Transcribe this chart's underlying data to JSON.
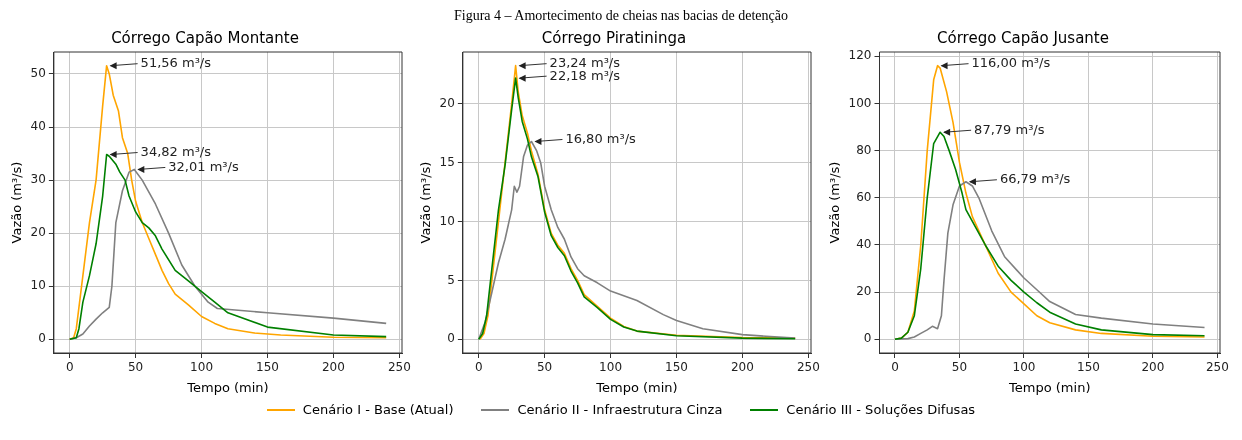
{
  "chart_data": [
    {
      "type": "line",
      "title": "Córrego Capão Montante",
      "xlabel": "Tempo (min)",
      "ylabel": "Vazão (m³/s)",
      "xlim": [
        -12,
        252
      ],
      "ylim": [
        -2.58,
        54.14
      ],
      "xticks": [
        0,
        50,
        100,
        150,
        200,
        250
      ],
      "yticks": [
        0,
        10,
        20,
        30,
        40,
        50
      ],
      "grid": true,
      "legend": "bottom",
      "line_style": "solid",
      "marker": "none",
      "annotations": [
        "Figura 4 – Amortecimento de cheias nas bacias de detenção",
        {
          "text": "51,56 m³/s",
          "x": 28,
          "y": 51.56
        },
        {
          "text": "34,82 m³/s",
          "x": 28,
          "y": 34.82
        },
        {
          "text": "32,01 m³/s",
          "x": 49,
          "y": 32.01
        }
      ],
      "series": [
        {
          "name": "Cenário I - Base (Atual)",
          "color": "#ffa500",
          "x": [
            0,
            3,
            5,
            10,
            15,
            20,
            25,
            28,
            30,
            33,
            37,
            40,
            44,
            47,
            50,
            55,
            60,
            65,
            70,
            75,
            80,
            90,
            100,
            110,
            120,
            140,
            160,
            200,
            240
          ],
          "values": [
            0,
            0.3,
            2,
            12,
            22,
            30,
            44,
            51.56,
            50,
            46,
            43,
            38,
            35,
            30,
            26,
            22,
            19,
            16,
            13,
            10.5,
            8.5,
            6.5,
            4.3,
            3,
            2,
            1.2,
            0.8,
            0.4,
            0.3
          ]
        },
        {
          "name": "Cenário II - Infraestrutura Cinza",
          "color": "#808080",
          "x": [
            0,
            5,
            10,
            15,
            20,
            25,
            30,
            32,
            35,
            40,
            45,
            49,
            55,
            65,
            75,
            85,
            95,
            105,
            112,
            150,
            200,
            240
          ],
          "values": [
            0,
            0.3,
            1,
            2.5,
            3.8,
            5,
            6,
            10,
            22,
            28,
            31.5,
            32.01,
            30,
            25.5,
            20,
            14,
            10,
            7,
            5.8,
            5,
            4,
            3
          ]
        },
        {
          "name": "Cenário III - Soluções Difusas",
          "color": "#008000",
          "x": [
            0,
            5,
            7,
            10,
            15,
            20,
            25,
            28,
            30,
            35,
            38,
            42,
            45,
            50,
            55,
            60,
            65,
            70,
            80,
            90,
            100,
            110,
            120,
            150,
            200,
            240
          ],
          "values": [
            0,
            0.3,
            2,
            7,
            12,
            18,
            27,
            34.82,
            34.5,
            33,
            31.5,
            30,
            27,
            24,
            22,
            21,
            19.5,
            17,
            13,
            11,
            9,
            7,
            5,
            2.3,
            0.8,
            0.5
          ]
        }
      ]
    },
    {
      "type": "line",
      "title": "Córrego Piratininga",
      "xlabel": "Tempo (min)",
      "ylabel": "Vazão (m³/s)",
      "xlim": [
        -12,
        252
      ],
      "ylim": [
        -1.16,
        24.4
      ],
      "xticks": [
        0,
        50,
        100,
        150,
        200,
        250
      ],
      "yticks": [
        0,
        5,
        10,
        15,
        20
      ],
      "grid": true,
      "line_style": "solid",
      "marker": "none",
      "annotations": [
        {
          "text": "23,24 m³/s",
          "x": 28,
          "y": 23.24
        },
        {
          "text": "22,18 m³/s",
          "x": 28,
          "y": 22.18
        },
        {
          "text": "16,80 m³/s",
          "x": 40,
          "y": 16.8
        }
      ],
      "series": [
        {
          "color": "#ffa500",
          "x": [
            1,
            4,
            7,
            11,
            16,
            20,
            25,
            28,
            30,
            33,
            37,
            40,
            45,
            50,
            55,
            60,
            65,
            70,
            75,
            80,
            90,
            100,
            110,
            120,
            150,
            200,
            240
          ],
          "values": [
            0,
            0.5,
            2,
            6,
            11,
            15,
            20,
            23.24,
            21,
            19,
            17.5,
            16,
            14,
            11,
            9,
            8,
            7.3,
            6,
            5,
            3.8,
            2.8,
            1.8,
            1.1,
            0.7,
            0.35,
            0.15,
            0.1
          ]
        },
        {
          "color": "#808080",
          "x": [
            0,
            5,
            10,
            15,
            20,
            25,
            27,
            29,
            31,
            34,
            37,
            40,
            44,
            47,
            50,
            55,
            60,
            65,
            70,
            75,
            80,
            90,
            100,
            120,
            140,
            150,
            170,
            200,
            240
          ],
          "values": [
            0,
            1.5,
            4,
            6.5,
            8.5,
            11,
            13,
            12.5,
            13,
            15.5,
            16.5,
            16.8,
            16,
            15,
            13,
            11,
            9.5,
            8.5,
            7,
            6,
            5.4,
            4.8,
            4.1,
            3.3,
            2.1,
            1.6,
            0.9,
            0.4,
            0.1
          ]
        },
        {
          "color": "#008000",
          "x": [
            0,
            3,
            6,
            10,
            15,
            20,
            25,
            28,
            30,
            33,
            37,
            40,
            45,
            50,
            55,
            60,
            65,
            70,
            75,
            80,
            90,
            100,
            110,
            120,
            150,
            200,
            240
          ],
          "values": [
            0,
            0.5,
            2,
            6,
            11,
            14.8,
            19.5,
            22.18,
            20.5,
            18.5,
            17,
            15.5,
            13.8,
            10.8,
            8.8,
            7.8,
            7.1,
            5.8,
            4.8,
            3.6,
            2.7,
            1.7,
            1.05,
            0.7,
            0.3,
            0.1,
            0.05
          ]
        }
      ]
    },
    {
      "type": "line",
      "title": "Córrego Capão Jusante",
      "xlabel": "Tempo (min)",
      "ylabel": "Vazão (m³/s)",
      "xlim": [
        -12,
        252
      ],
      "ylim": [
        -5.8,
        121.8
      ],
      "xticks": [
        0,
        50,
        100,
        150,
        200,
        250
      ],
      "yticks": [
        0,
        20,
        40,
        60,
        80,
        100,
        120
      ],
      "grid": true,
      "line_style": "solid",
      "marker": "none",
      "annotations": [
        {
          "text": "116,00 m³/s",
          "x": 33,
          "y": 116
        },
        {
          "text": "87,79 m³/s",
          "x": 35,
          "y": 87.79
        },
        {
          "text": "66,79 m³/s",
          "x": 55,
          "y": 66.79
        }
      ],
      "series": [
        {
          "color": "#ffa500",
          "x": [
            0,
            5,
            10,
            15,
            20,
            25,
            30,
            33,
            35,
            40,
            45,
            50,
            55,
            60,
            70,
            80,
            90,
            100,
            110,
            120,
            140,
            160,
            200,
            240
          ],
          "values": [
            0,
            0.5,
            3,
            12,
            40,
            80,
            110,
            116,
            115,
            105,
            92,
            75,
            62,
            52,
            40,
            28,
            20,
            15,
            10,
            7,
            4,
            2.5,
            1.3,
            1
          ]
        },
        {
          "color": "#808080",
          "x": [
            0,
            10,
            15,
            20,
            25,
            29,
            33,
            36,
            38,
            41,
            45,
            50,
            55,
            60,
            65,
            75,
            85,
            100,
            110,
            120,
            140,
            160,
            200,
            240
          ],
          "values": [
            0,
            0.3,
            1,
            2.5,
            4,
            5.5,
            4.5,
            10,
            25,
            45,
            57,
            65,
            66.79,
            65,
            60,
            46,
            35,
            26,
            21,
            16,
            10.5,
            9,
            6.5,
            5
          ]
        },
        {
          "color": "#008000",
          "x": [
            0,
            5,
            10,
            15,
            20,
            25,
            30,
            35,
            38,
            42,
            47,
            52,
            55,
            60,
            70,
            80,
            90,
            100,
            110,
            120,
            140,
            160,
            200,
            240
          ],
          "values": [
            0,
            0.5,
            3,
            10,
            30,
            60,
            83,
            87.79,
            86,
            80,
            72,
            62,
            55,
            50,
            40,
            31,
            25,
            20,
            15.5,
            11.5,
            6.5,
            4,
            2,
            1.5
          ]
        }
      ]
    }
  ]
}
